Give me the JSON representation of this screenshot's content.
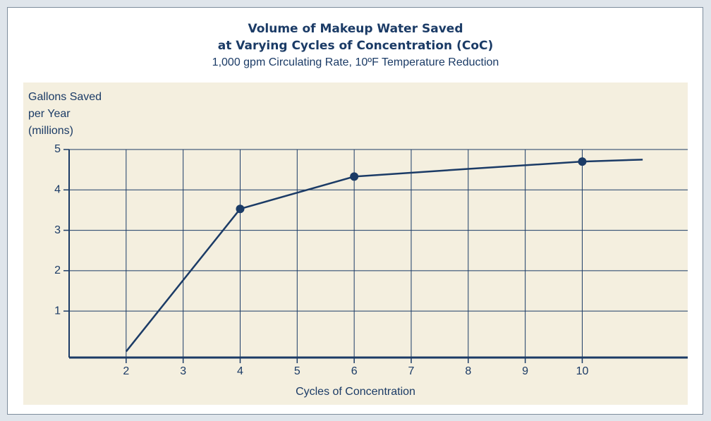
{
  "chart_data": {
    "type": "line",
    "title": [
      "Volume of Makeup Water Saved",
      "at Varying Cycles of Concentration (CoC)"
    ],
    "subtitle": "1,000 gpm Circulating Rate, 10ºF Temperature Reduction",
    "y_label": [
      "Gallons Saved",
      "per Year",
      "(millions)"
    ],
    "x_label": "Cycles of Concentration",
    "x": [
      2,
      4,
      6,
      8,
      10,
      11.06
    ],
    "series": [
      {
        "color": "#1b3b66",
        "values": [
          0,
          3.53,
          4.33,
          4.52,
          4.7,
          4.75
        ],
        "markers": [
          false,
          true,
          true,
          false,
          true,
          false
        ]
      }
    ],
    "xlim": [
      1,
      11.85
    ],
    "ylim": [
      -0.15,
      5
    ],
    "xticks": [
      2,
      3,
      4,
      5,
      6,
      7,
      8,
      9,
      10
    ],
    "yticks": [
      1,
      2,
      3,
      4,
      5
    ],
    "grid": true
  }
}
